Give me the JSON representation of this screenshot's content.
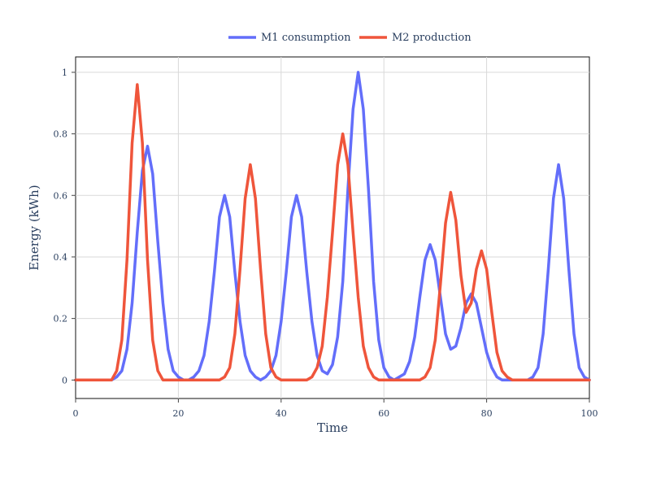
{
  "chart_data": {
    "type": "line",
    "xlabel": "Time",
    "ylabel": "Energy (kWh)",
    "xlim": [
      0,
      100
    ],
    "ylim": [
      -0.06,
      1.05
    ],
    "xticks": [
      0,
      20,
      40,
      60,
      80,
      100
    ],
    "xtick_labels": [
      "0",
      "20",
      "40",
      "60",
      "80",
      "100"
    ],
    "yticks": [
      0,
      0.2,
      0.4,
      0.6,
      0.8,
      1
    ],
    "ytick_labels": [
      "0",
      "0.2",
      "0.4",
      "0.6",
      "0.8",
      "1"
    ],
    "grid": true,
    "legend_position": "top-center",
    "series": [
      {
        "name": "M1 consumption",
        "color": "#636efa",
        "points": [
          [
            0,
            0
          ],
          [
            7,
            0
          ],
          [
            8,
            0.01
          ],
          [
            9,
            0.03
          ],
          [
            10,
            0.1
          ],
          [
            11,
            0.25
          ],
          [
            12,
            0.48
          ],
          [
            13,
            0.68
          ],
          [
            14,
            0.76
          ],
          [
            15,
            0.67
          ],
          [
            16,
            0.45
          ],
          [
            17,
            0.25
          ],
          [
            18,
            0.1
          ],
          [
            19,
            0.03
          ],
          [
            20,
            0.01
          ],
          [
            21,
            0
          ],
          [
            22,
            0
          ],
          [
            23,
            0.01
          ],
          [
            24,
            0.03
          ],
          [
            25,
            0.08
          ],
          [
            26,
            0.19
          ],
          [
            27,
            0.35
          ],
          [
            28,
            0.53
          ],
          [
            29,
            0.6
          ],
          [
            30,
            0.53
          ],
          [
            31,
            0.35
          ],
          [
            32,
            0.19
          ],
          [
            33,
            0.08
          ],
          [
            34,
            0.03
          ],
          [
            35,
            0.01
          ],
          [
            36,
            0
          ],
          [
            37,
            0.01
          ],
          [
            38,
            0.03
          ],
          [
            39,
            0.08
          ],
          [
            40,
            0.19
          ],
          [
            41,
            0.35
          ],
          [
            42,
            0.53
          ],
          [
            43,
            0.6
          ],
          [
            44,
            0.53
          ],
          [
            45,
            0.35
          ],
          [
            46,
            0.19
          ],
          [
            47,
            0.08
          ],
          [
            48,
            0.03
          ],
          [
            49,
            0.02
          ],
          [
            50,
            0.05
          ],
          [
            51,
            0.14
          ],
          [
            52,
            0.32
          ],
          [
            53,
            0.62
          ],
          [
            54,
            0.88
          ],
          [
            55,
            1
          ],
          [
            56,
            0.88
          ],
          [
            57,
            0.62
          ],
          [
            58,
            0.32
          ],
          [
            59,
            0.13
          ],
          [
            60,
            0.04
          ],
          [
            61,
            0.01
          ],
          [
            62,
            0
          ],
          [
            63,
            0.01
          ],
          [
            64,
            0.02
          ],
          [
            65,
            0.06
          ],
          [
            66,
            0.14
          ],
          [
            67,
            0.27
          ],
          [
            68,
            0.39
          ],
          [
            69,
            0.44
          ],
          [
            70,
            0.39
          ],
          [
            71,
            0.27
          ],
          [
            72,
            0.15
          ],
          [
            73,
            0.1
          ],
          [
            74,
            0.11
          ],
          [
            75,
            0.17
          ],
          [
            76,
            0.25
          ],
          [
            77,
            0.28
          ],
          [
            78,
            0.25
          ],
          [
            79,
            0.17
          ],
          [
            80,
            0.09
          ],
          [
            81,
            0.04
          ],
          [
            82,
            0.01
          ],
          [
            83,
            0
          ],
          [
            88,
            0
          ],
          [
            89,
            0.01
          ],
          [
            90,
            0.04
          ],
          [
            91,
            0.15
          ],
          [
            92,
            0.36
          ],
          [
            93,
            0.59
          ],
          [
            94,
            0.7
          ],
          [
            95,
            0.59
          ],
          [
            96,
            0.36
          ],
          [
            97,
            0.15
          ],
          [
            98,
            0.04
          ],
          [
            99,
            0.01
          ],
          [
            100,
            0
          ]
        ]
      },
      {
        "name": "M2 production",
        "color": "#ef553b",
        "points": [
          [
            0,
            0
          ],
          [
            7,
            0
          ],
          [
            8,
            0.03
          ],
          [
            9,
            0.13
          ],
          [
            10,
            0.39
          ],
          [
            11,
            0.77
          ],
          [
            12,
            0.96
          ],
          [
            13,
            0.77
          ],
          [
            14,
            0.39
          ],
          [
            15,
            0.13
          ],
          [
            16,
            0.03
          ],
          [
            17,
            0
          ],
          [
            28,
            0
          ],
          [
            29,
            0.01
          ],
          [
            30,
            0.04
          ],
          [
            31,
            0.15
          ],
          [
            32,
            0.36
          ],
          [
            33,
            0.59
          ],
          [
            34,
            0.7
          ],
          [
            35,
            0.59
          ],
          [
            36,
            0.36
          ],
          [
            37,
            0.15
          ],
          [
            38,
            0.04
          ],
          [
            39,
            0.01
          ],
          [
            40,
            0
          ],
          [
            45,
            0
          ],
          [
            46,
            0.01
          ],
          [
            47,
            0.04
          ],
          [
            48,
            0.11
          ],
          [
            49,
            0.27
          ],
          [
            50,
            0.48
          ],
          [
            51,
            0.7
          ],
          [
            52,
            0.8
          ],
          [
            53,
            0.7
          ],
          [
            54,
            0.48
          ],
          [
            55,
            0.27
          ],
          [
            56,
            0.11
          ],
          [
            57,
            0.04
          ],
          [
            58,
            0.01
          ],
          [
            59,
            0
          ],
          [
            67,
            0
          ],
          [
            68,
            0.01
          ],
          [
            69,
            0.04
          ],
          [
            70,
            0.13
          ],
          [
            71,
            0.31
          ],
          [
            72,
            0.51
          ],
          [
            73,
            0.61
          ],
          [
            74,
            0.52
          ],
          [
            75,
            0.34
          ],
          [
            76,
            0.22
          ],
          [
            77,
            0.25
          ],
          [
            78,
            0.36
          ],
          [
            79,
            0.42
          ],
          [
            80,
            0.36
          ],
          [
            81,
            0.22
          ],
          [
            82,
            0.09
          ],
          [
            83,
            0.03
          ],
          [
            84,
            0.01
          ],
          [
            85,
            0
          ],
          [
            100,
            0
          ]
        ]
      }
    ]
  }
}
